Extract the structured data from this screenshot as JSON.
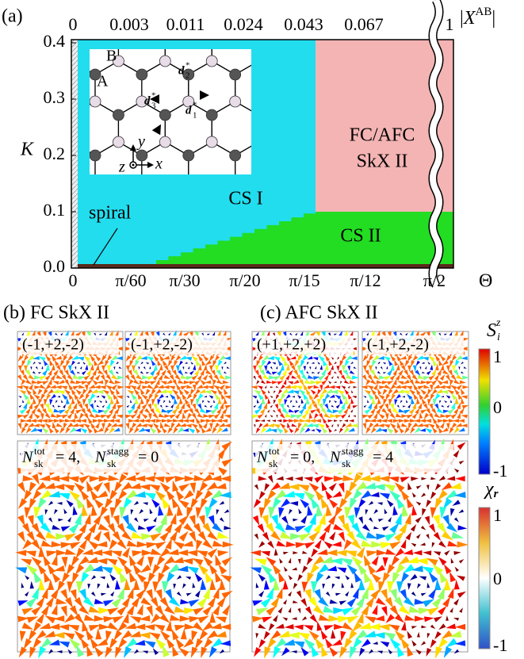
{
  "panel_a": {
    "label": "(a)",
    "y_axis_title": "K",
    "y_ticks": [
      "0.0",
      "0.1",
      "0.2",
      "0.3",
      "0.4"
    ],
    "x_axis_title": "Θ",
    "x_ticks": [
      "0",
      "π/60",
      "π/30",
      "π/20",
      "π/15",
      "π/12",
      "π/2"
    ],
    "top_axis_title": {
      "open": "|",
      "symbol": "X",
      "sup": "AB",
      "close": "|"
    },
    "top_ticks": [
      "0",
      "0.003",
      "0.011",
      "0.024",
      "0.043",
      "0.067",
      "1"
    ],
    "regions": {
      "cs1": "CS I",
      "skx": [
        "FC/AFC",
        "SkX II"
      ],
      "cs2": "CS II",
      "spiral": "spiral"
    },
    "inset": {
      "sites": [
        "A",
        "B"
      ],
      "vectors": [
        {
          "symbol": "d",
          "sup": "*",
          "sub": "1"
        },
        {
          "symbol": "d",
          "sup": "*",
          "sub": "2"
        },
        {
          "symbol": "d",
          "sup": "*",
          "sub": "3"
        }
      ],
      "axes": [
        "x",
        "y",
        "z"
      ]
    }
  },
  "panel_b": {
    "title": "(b) FC SkX II",
    "small_labels": [
      "(-1,+2,-2)",
      "(-1,+2,-2)"
    ],
    "large_label": {
      "n1": "N",
      "sub1": "sk",
      "sup1": "tot",
      "eq1": "= 4,",
      "n2": "N",
      "sub2": "sk",
      "sup2": "stagg",
      "eq2": "= 0"
    }
  },
  "panel_c": {
    "title": "(c) AFC SkX II",
    "small_labels": [
      "(+1,+2,+2)",
      "(-1,+2,-2)"
    ],
    "large_label": {
      "n1": "N",
      "sub1": "sk",
      "sup1": "tot",
      "eq1": "= 0,",
      "n2": "N",
      "sub2": "sk",
      "sup2": "stagg",
      "eq2": "= 4"
    }
  },
  "colorbars": {
    "spin": {
      "symbol": "S",
      "sub": "i",
      "sup": "z",
      "ticks": [
        "1",
        "0",
        "-1"
      ]
    },
    "chirality": {
      "symbol": "χ",
      "sub": "r",
      "ticks": [
        "1",
        "0",
        "-1"
      ]
    }
  }
}
